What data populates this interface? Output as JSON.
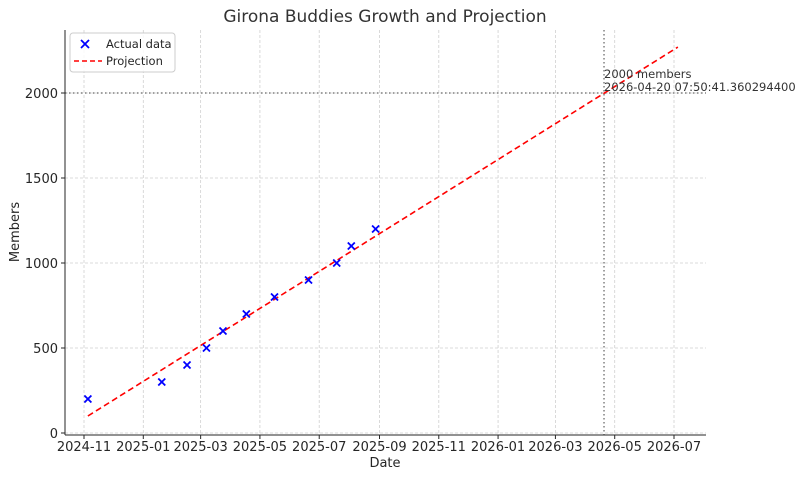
{
  "chart_data": {
    "type": "scatter",
    "title": "Girona Buddies Growth and Projection",
    "xlabel": "Date",
    "ylabel": "Members",
    "ylim": [
      0,
      2380
    ],
    "xlim": [
      "2024-10-20",
      "2026-08-10"
    ],
    "grid": true,
    "legend_position": "upper left",
    "x_ticks": [
      "2024-11",
      "2025-01",
      "2025-03",
      "2025-05",
      "2025-07",
      "2025-09",
      "2025-11",
      "2026-01",
      "2026-03",
      "2026-05",
      "2026-07"
    ],
    "y_ticks": [
      0,
      500,
      1000,
      1500,
      2000
    ],
    "series": [
      {
        "name": "Actual data",
        "kind": "scatter",
        "marker": "x",
        "color": "#0000ff",
        "x": [
          "2024-11-05",
          "2025-01-20",
          "2025-02-15",
          "2025-03-07",
          "2025-03-24",
          "2025-04-17",
          "2025-05-16",
          "2025-06-20",
          "2025-07-19",
          "2025-08-03",
          "2025-08-28"
        ],
        "y": [
          200,
          300,
          400,
          500,
          600,
          700,
          800,
          900,
          1000,
          1100,
          1200
        ]
      },
      {
        "name": "Projection",
        "kind": "line",
        "style": "dashed",
        "color": "#ff0000",
        "x": [
          "2024-11-05",
          "2026-07-05"
        ],
        "y": [
          100,
          2270
        ]
      }
    ],
    "reference_lines": [
      {
        "orientation": "horizontal",
        "value": 2000,
        "style": "dotted",
        "color": "#808080"
      },
      {
        "orientation": "vertical",
        "value": "2026-04-20",
        "style": "dotted",
        "color": "#808080"
      }
    ],
    "annotations": [
      {
        "text_line1": "2000 members",
        "text_line2": "2026-04-20 07:50:41.360294400"
      }
    ]
  },
  "legend": {
    "actual_label": "Actual data",
    "projection_label": "Projection"
  }
}
